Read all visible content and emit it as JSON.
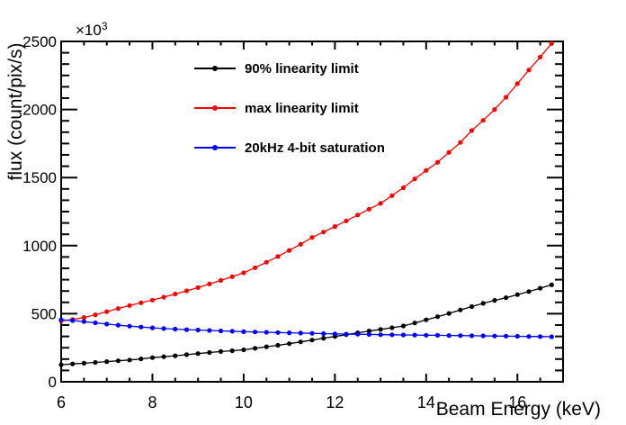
{
  "chart_data": {
    "type": "line",
    "title": "",
    "xlabel": "Beam Energy (keV)",
    "ylabel": "flux (count/pix/s)",
    "y_multiplier": {
      "text": "×10",
      "exp": "3"
    },
    "xlim": [
      6,
      17
    ],
    "ylim": [
      0,
      2500
    ],
    "x_major_ticks": [
      6,
      8,
      10,
      12,
      14,
      16
    ],
    "x_minor_step": 0.5,
    "y_major_ticks": [
      0,
      500,
      1000,
      1500,
      2000,
      2500
    ],
    "y_minor_per_major": 6,
    "grid": false,
    "legend_position": "top-left-inside",
    "marker": "filled-circle",
    "x": [
      6,
      6.25,
      6.5,
      6.75,
      7,
      7.25,
      7.5,
      7.75,
      8,
      8.25,
      8.5,
      8.75,
      9,
      9.25,
      9.5,
      9.75,
      10,
      10.25,
      10.5,
      10.75,
      11,
      11.25,
      11.5,
      11.75,
      12,
      12.25,
      12.5,
      12.75,
      13,
      13.25,
      13.5,
      13.75,
      14,
      14.25,
      14.5,
      14.75,
      15,
      15.25,
      15.5,
      15.75,
      16,
      16.25,
      16.5,
      16.75
    ],
    "series": [
      {
        "name": "90% linearity limit",
        "color": "#000000",
        "values": [
          125,
          131,
          136,
          142,
          148,
          154,
          160,
          168,
          177,
          184,
          191,
          199,
          207,
          215,
          222,
          228,
          235,
          246,
          257,
          268,
          280,
          293,
          306,
          320,
          333,
          346,
          360,
          373,
          385,
          397,
          410,
          432,
          455,
          478,
          502,
          528,
          552,
          576,
          598,
          618,
          640,
          663,
          687,
          712
        ]
      },
      {
        "name": "max linearity limit",
        "color": "#ff0000",
        "values": [
          448,
          458,
          472,
          492,
          515,
          538,
          560,
          580,
          600,
          622,
          645,
          668,
          692,
          718,
          745,
          772,
          800,
          838,
          878,
          920,
          965,
          1010,
          1060,
          1100,
          1140,
          1182,
          1225,
          1268,
          1310,
          1367,
          1425,
          1490,
          1552,
          1612,
          1685,
          1758,
          1845,
          1920,
          2000,
          2090,
          2190,
          2290,
          2385,
          2485
        ]
      },
      {
        "name": "20kHz 4-bit saturation",
        "color": "#0000ff",
        "values": [
          455,
          450,
          442,
          433,
          424,
          416,
          409,
          402,
          396,
          391,
          387,
          383,
          380,
          377,
          374,
          371,
          368,
          366,
          364,
          362,
          360,
          358,
          356,
          354,
          352,
          350,
          349,
          348,
          346,
          345,
          344,
          343,
          342,
          341,
          340,
          339,
          338,
          337,
          336,
          335,
          334,
          333,
          332,
          331
        ]
      }
    ]
  }
}
